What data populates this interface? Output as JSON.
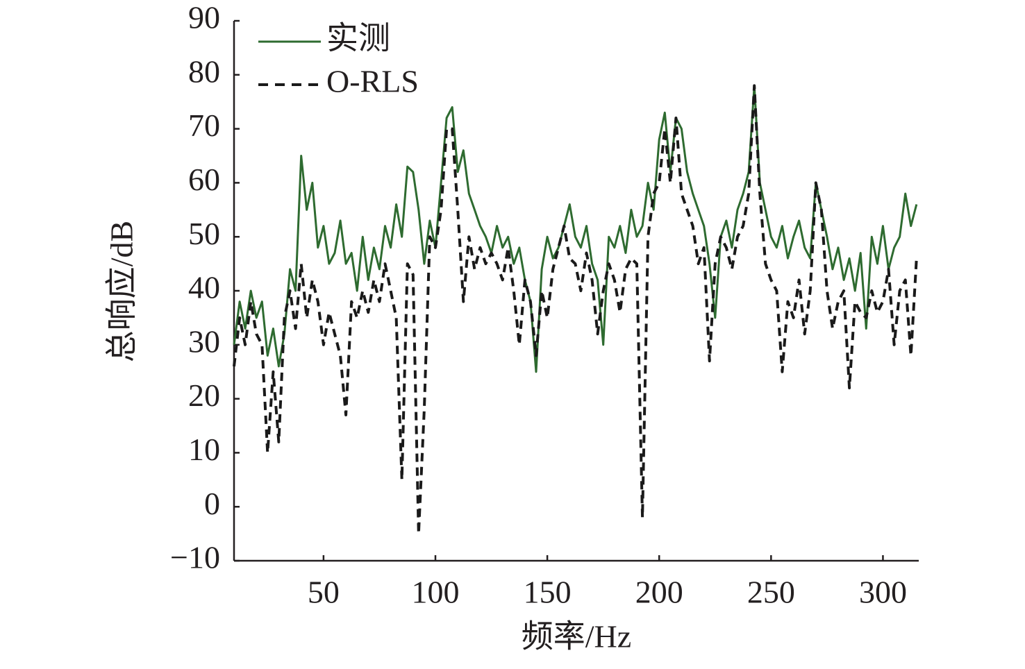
{
  "chart_data": {
    "type": "line",
    "y_label": "总响应/dB",
    "x_label": "频率/Hz",
    "x": [
      10,
      12.5,
      15,
      17.5,
      20,
      22.5,
      25,
      27.5,
      30,
      32.5,
      35,
      37.5,
      40,
      42.5,
      45,
      47.5,
      50,
      52.5,
      55,
      57.5,
      60,
      62.5,
      65,
      67.5,
      70,
      72.5,
      75,
      77.5,
      80,
      82.5,
      85,
      87.5,
      90,
      92.5,
      95,
      97.5,
      100,
      102.5,
      105,
      107.5,
      110,
      112.5,
      115,
      117.5,
      120,
      122.5,
      125,
      127.5,
      130,
      132.5,
      135,
      137.5,
      140,
      142.5,
      145,
      147.5,
      150,
      152.5,
      155,
      157.5,
      160,
      162.5,
      165,
      167.5,
      170,
      172.5,
      175,
      177.5,
      180,
      182.5,
      185,
      187.5,
      190,
      192.5,
      195,
      197.5,
      200,
      202.5,
      205,
      207.5,
      210,
      212.5,
      215,
      217.5,
      220,
      222.5,
      225,
      227.5,
      230,
      232.5,
      235,
      237.5,
      240,
      242.5,
      245,
      247.5,
      250,
      252.5,
      255,
      257.5,
      260,
      262.5,
      265,
      267.5,
      270,
      272.5,
      275,
      277.5,
      280,
      282.5,
      285,
      287.5,
      290,
      292.5,
      295,
      297.5,
      300,
      302.5,
      305,
      307.5,
      310,
      312.5,
      315
    ],
    "series": [
      {
        "name": "实测",
        "color": "#2e6b30",
        "dash": false,
        "values": [
          30,
          38,
          33,
          40,
          35,
          38,
          28,
          33,
          26,
          32,
          44,
          40,
          65,
          55,
          60,
          48,
          52,
          45,
          47,
          53,
          45,
          47,
          40,
          50,
          42,
          48,
          44,
          52,
          48,
          56,
          50,
          63,
          62,
          55,
          45,
          53,
          48,
          60,
          72,
          74,
          62,
          66,
          58,
          55,
          52,
          50,
          47,
          52,
          48,
          50,
          45,
          48,
          42,
          38,
          25,
          44,
          50,
          46,
          48,
          52,
          56,
          50,
          48,
          52,
          45,
          42,
          30,
          50,
          48,
          52,
          47,
          55,
          50,
          52,
          60,
          55,
          68,
          73,
          62,
          72,
          70,
          62,
          58,
          55,
          52,
          45,
          35,
          50,
          53,
          48,
          55,
          58,
          62,
          78,
          60,
          55,
          50,
          48,
          52,
          46,
          50,
          53,
          48,
          46,
          60,
          55,
          50,
          44,
          48,
          42,
          46,
          40,
          47,
          33,
          50,
          45,
          52,
          44,
          48,
          50,
          58,
          52,
          56
        ]
      },
      {
        "name": "O-RLS",
        "color": "#1a1a1a",
        "dash": true,
        "values": [
          26,
          35,
          30,
          38,
          32,
          30,
          10,
          25,
          12,
          35,
          40,
          33,
          45,
          35,
          42,
          38,
          30,
          36,
          32,
          28,
          17,
          38,
          35,
          40,
          36,
          42,
          38,
          45,
          40,
          35,
          5,
          45,
          43,
          -5,
          18,
          50,
          48,
          55,
          70,
          70,
          55,
          38,
          50,
          44,
          48,
          45,
          47,
          45,
          42,
          48,
          40,
          30,
          42,
          38,
          28,
          40,
          35,
          44,
          48,
          52,
          46,
          45,
          40,
          47,
          42,
          32,
          40,
          45,
          42,
          36,
          44,
          46,
          45,
          -2,
          50,
          58,
          60,
          70,
          60,
          72,
          58,
          55,
          52,
          45,
          48,
          27,
          45,
          50,
          48,
          44,
          50,
          52,
          58,
          78,
          58,
          45,
          42,
          40,
          25,
          38,
          35,
          42,
          32,
          40,
          60,
          55,
          40,
          33,
          38,
          40,
          22,
          38,
          36,
          35,
          40,
          36,
          38,
          44,
          30,
          40,
          42,
          28,
          46
        ]
      }
    ],
    "xlim": [
      10,
      316
    ],
    "xticks": [
      50,
      100,
      150,
      200,
      250,
      300
    ],
    "ylim": [
      -10,
      90
    ],
    "yticks": [
      {
        "value": -10,
        "label": "−10"
      },
      0,
      10,
      20,
      30,
      40,
      50,
      60,
      70,
      80,
      90
    ],
    "grid": false,
    "legend": "upper left"
  }
}
